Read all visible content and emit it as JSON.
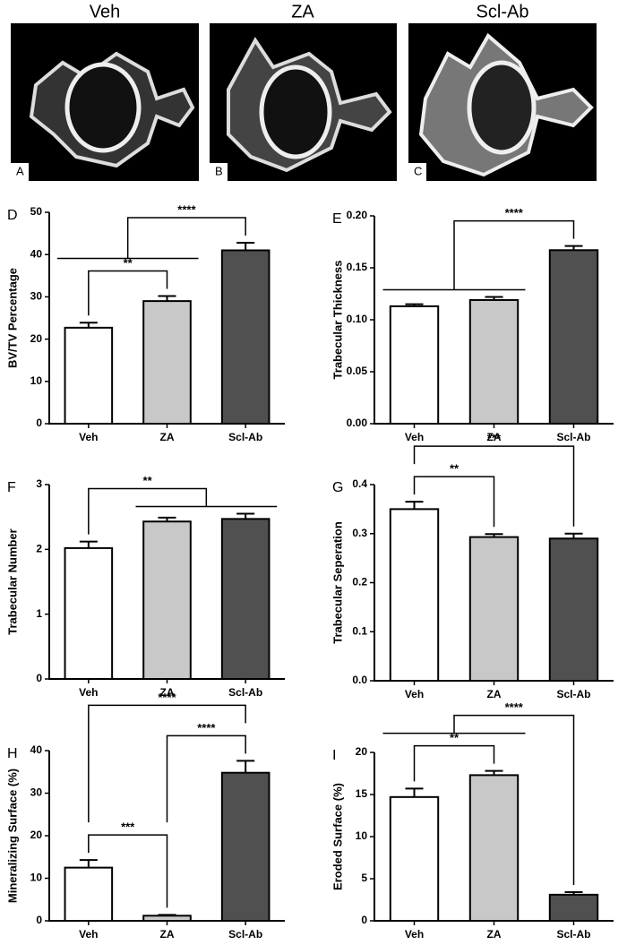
{
  "images": [
    {
      "title": "Veh",
      "letter": "A"
    },
    {
      "title": "ZA",
      "letter": "B"
    },
    {
      "title": "Scl-Ab",
      "letter": "C"
    }
  ],
  "chart_data": [
    {
      "type": "bar",
      "panel": "D",
      "ylabel": "BV/TV Percentage",
      "categories": [
        "Veh",
        "ZA",
        "Scl-Ab"
      ],
      "values": [
        22.7,
        29,
        41
      ],
      "errors": [
        1.2,
        1.2,
        1.8
      ],
      "colors": [
        "#ffffff",
        "#c8c8c8",
        "#505050"
      ],
      "ylim": [
        0,
        50
      ],
      "yticks": [
        0,
        10,
        20,
        30,
        40,
        50
      ],
      "annotations": [
        {
          "text": "**",
          "left": [
            0
          ],
          "right": [
            1
          ]
        },
        {
          "text": "****",
          "left": [
            0,
            1
          ],
          "right": [
            2
          ]
        }
      ]
    },
    {
      "type": "bar",
      "panel": "E",
      "ylabel": "Trabecular Thickness",
      "categories": [
        "Veh",
        "ZA",
        "Scl-Ab"
      ],
      "values": [
        0.113,
        0.119,
        0.167
      ],
      "errors": [
        0.002,
        0.003,
        0.004
      ],
      "colors": [
        "#ffffff",
        "#c8c8c8",
        "#505050"
      ],
      "ylim": [
        0,
        0.2
      ],
      "yticks": [
        {
          "value": 0,
          "label": "0.00"
        },
        {
          "value": 0.05,
          "label": "0.05"
        },
        {
          "value": 0.1,
          "label": "0.10"
        },
        {
          "value": 0.15,
          "label": "0.15"
        },
        {
          "value": 0.2,
          "label": "0.20"
        }
      ],
      "annotations": [
        {
          "text": "****",
          "left": [
            0,
            1
          ],
          "right": [
            2
          ]
        }
      ]
    },
    {
      "type": "bar",
      "panel": "F",
      "ylabel": "Trabecular Number",
      "categories": [
        "Veh",
        "ZA",
        "Scl-Ab"
      ],
      "values": [
        2.02,
        2.43,
        2.47
      ],
      "errors": [
        0.1,
        0.06,
        0.08
      ],
      "colors": [
        "#ffffff",
        "#c8c8c8",
        "#505050"
      ],
      "ylim": [
        0,
        3
      ],
      "yticks": [
        0,
        1,
        2,
        3
      ],
      "annotations": [
        {
          "text": "**",
          "left": [
            0
          ],
          "right": [
            1,
            2
          ]
        }
      ]
    },
    {
      "type": "bar",
      "panel": "G",
      "ylabel": "Trabecular Seperation",
      "categories": [
        "Veh",
        "ZA",
        "Scl-Ab"
      ],
      "values": [
        0.35,
        0.293,
        0.29
      ],
      "errors": [
        0.015,
        0.006,
        0.01
      ],
      "colors": [
        "#ffffff",
        "#c8c8c8",
        "#505050"
      ],
      "ylim": [
        0,
        0.4
      ],
      "yticks": [
        {
          "value": 0,
          "label": "0.0"
        },
        {
          "value": 0.1,
          "label": "0.1"
        },
        {
          "value": 0.2,
          "label": "0.2"
        },
        {
          "value": 0.3,
          "label": "0.3"
        },
        {
          "value": 0.4,
          "label": "0.4"
        }
      ],
      "annotations": [
        {
          "text": "**",
          "left": [
            0
          ],
          "right": [
            1
          ]
        },
        {
          "text": "***",
          "left": [
            0
          ],
          "right": [
            2
          ]
        }
      ]
    },
    {
      "type": "bar",
      "panel": "H",
      "ylabel": "Mineralizing Surface (%)",
      "categories": [
        "Veh",
        "ZA",
        "Scl-Ab"
      ],
      "values": [
        12.5,
        1.2,
        34.8
      ],
      "errors": [
        1.8,
        0.2,
        2.8
      ],
      "colors": [
        "#ffffff",
        "#c8c8c8",
        "#505050"
      ],
      "ylim": [
        0,
        40
      ],
      "yticks": [
        0,
        10,
        20,
        30,
        40
      ],
      "annotations": [
        {
          "text": "***",
          "left": [
            0
          ],
          "right": [
            1
          ]
        },
        {
          "text": "****",
          "left": [
            1
          ],
          "right": [
            2
          ]
        },
        {
          "text": "****",
          "left": [
            0
          ],
          "right": [
            2
          ]
        }
      ]
    },
    {
      "type": "bar",
      "panel": "I",
      "ylabel": "Eroded Surface (%)",
      "categories": [
        "Veh",
        "ZA",
        "Scl-Ab"
      ],
      "values": [
        14.7,
        17.3,
        3.1
      ],
      "errors": [
        1.0,
        0.5,
        0.3
      ],
      "colors": [
        "#ffffff",
        "#c8c8c8",
        "#505050"
      ],
      "ylim": [
        0,
        20
      ],
      "yticks": [
        0,
        5,
        10,
        15,
        20
      ],
      "annotations": [
        {
          "text": "**",
          "left": [
            0
          ],
          "right": [
            1
          ]
        },
        {
          "text": "****",
          "left": [
            0,
            1
          ],
          "right": [
            2
          ]
        }
      ]
    }
  ]
}
